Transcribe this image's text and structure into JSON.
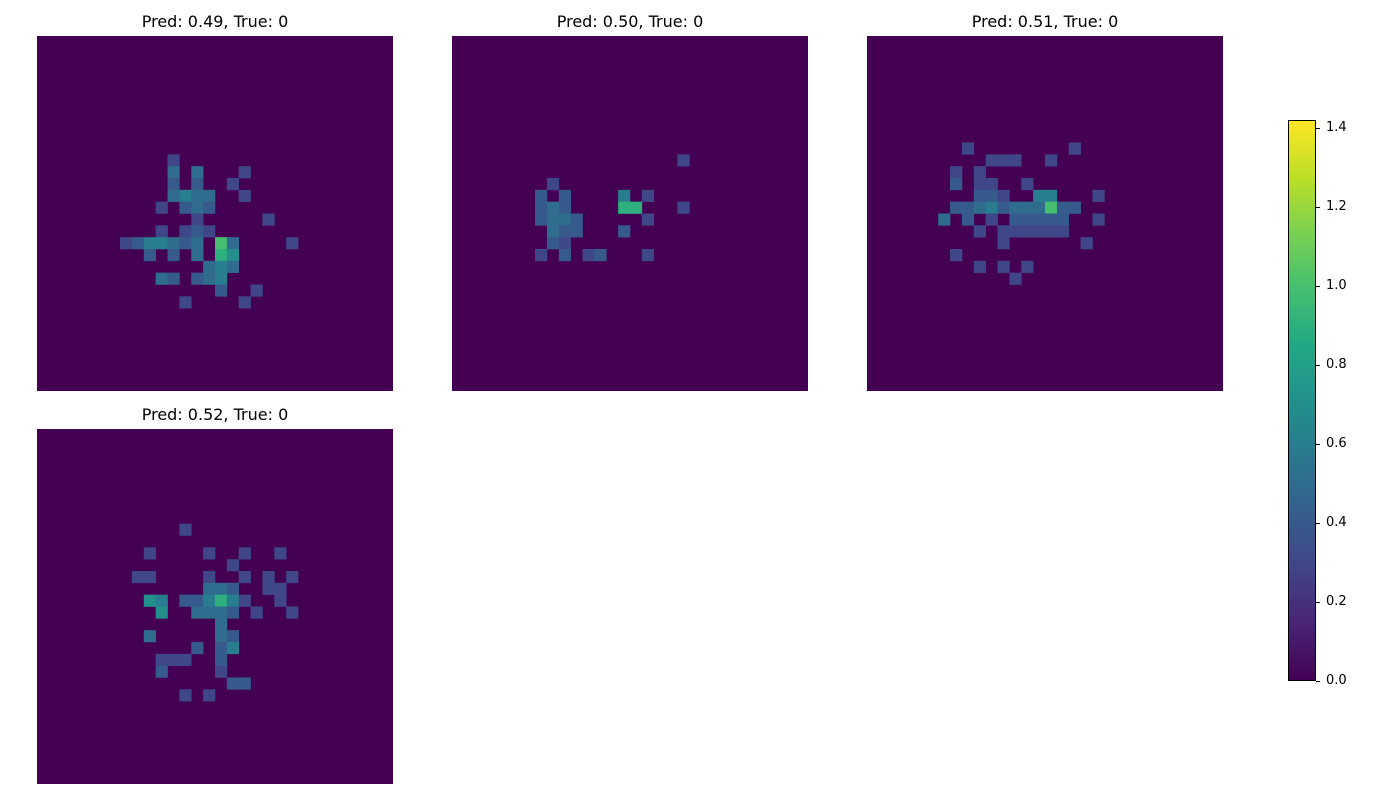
{
  "chart_data": {
    "type": "heatmap",
    "grid_size": 30,
    "background_value": 0.0,
    "colormap": "viridis",
    "panels": [
      {
        "title": "Pred: 0.49, True: 0",
        "cells": [
          [
            11,
            10,
            0.3
          ],
          [
            11,
            11,
            0.5
          ],
          [
            13,
            11,
            0.5
          ],
          [
            17,
            11,
            0.3
          ],
          [
            11,
            12,
            0.4
          ],
          [
            13,
            12,
            0.4
          ],
          [
            16,
            12,
            0.3
          ],
          [
            11,
            13,
            0.5
          ],
          [
            12,
            13,
            0.6
          ],
          [
            13,
            13,
            0.5
          ],
          [
            14,
            13,
            0.5
          ],
          [
            17,
            13,
            0.3
          ],
          [
            10,
            14,
            0.3
          ],
          [
            12,
            14,
            0.4
          ],
          [
            13,
            14,
            0.5
          ],
          [
            14,
            14,
            0.4
          ],
          [
            13,
            15,
            0.3
          ],
          [
            19,
            15,
            0.3
          ],
          [
            10,
            16,
            0.3
          ],
          [
            12,
            16,
            0.3
          ],
          [
            13,
            16,
            0.4
          ],
          [
            14,
            16,
            0.3
          ],
          [
            7,
            17,
            0.3
          ],
          [
            8,
            17,
            0.4
          ],
          [
            9,
            17,
            0.6
          ],
          [
            10,
            17,
            0.6
          ],
          [
            11,
            17,
            0.5
          ],
          [
            12,
            17,
            0.4
          ],
          [
            13,
            17,
            0.5
          ],
          [
            15,
            17,
            1.0
          ],
          [
            16,
            17,
            0.5
          ],
          [
            21,
            17,
            0.3
          ],
          [
            9,
            18,
            0.4
          ],
          [
            11,
            18,
            0.4
          ],
          [
            13,
            18,
            0.5
          ],
          [
            15,
            18,
            0.9
          ],
          [
            16,
            18,
            0.7
          ],
          [
            14,
            19,
            0.5
          ],
          [
            15,
            19,
            0.6
          ],
          [
            16,
            19,
            0.5
          ],
          [
            10,
            20,
            0.5
          ],
          [
            11,
            20,
            0.4
          ],
          [
            13,
            20,
            0.4
          ],
          [
            14,
            20,
            0.5
          ],
          [
            15,
            20,
            0.6
          ],
          [
            15,
            21,
            0.4
          ],
          [
            18,
            21,
            0.3
          ],
          [
            12,
            22,
            0.3
          ],
          [
            17,
            22,
            0.3
          ]
        ]
      },
      {
        "title": "Pred: 0.50, True: 0",
        "cells": [
          [
            19,
            10,
            0.3
          ],
          [
            8,
            12,
            0.3
          ],
          [
            7,
            13,
            0.4
          ],
          [
            9,
            13,
            0.4
          ],
          [
            14,
            13,
            0.6
          ],
          [
            16,
            13,
            0.3
          ],
          [
            7,
            14,
            0.4
          ],
          [
            8,
            14,
            0.5
          ],
          [
            9,
            14,
            0.4
          ],
          [
            14,
            14,
            0.9
          ],
          [
            15,
            14,
            0.9
          ],
          [
            19,
            14,
            0.3
          ],
          [
            7,
            15,
            0.4
          ],
          [
            8,
            15,
            0.5
          ],
          [
            9,
            15,
            0.5
          ],
          [
            10,
            15,
            0.4
          ],
          [
            16,
            15,
            0.3
          ],
          [
            8,
            16,
            0.5
          ],
          [
            9,
            16,
            0.4
          ],
          [
            10,
            16,
            0.4
          ],
          [
            14,
            16,
            0.4
          ],
          [
            8,
            17,
            0.4
          ],
          [
            9,
            17,
            0.3
          ],
          [
            7,
            18,
            0.3
          ],
          [
            9,
            18,
            0.4
          ],
          [
            11,
            18,
            0.3
          ],
          [
            12,
            18,
            0.4
          ],
          [
            16,
            18,
            0.3
          ]
        ]
      },
      {
        "title": "Pred: 0.51, True: 0",
        "cells": [
          [
            8,
            9,
            0.3
          ],
          [
            17,
            9,
            0.3
          ],
          [
            10,
            10,
            0.3
          ],
          [
            11,
            10,
            0.3
          ],
          [
            12,
            10,
            0.3
          ],
          [
            15,
            10,
            0.3
          ],
          [
            7,
            11,
            0.3
          ],
          [
            9,
            11,
            0.3
          ],
          [
            7,
            12,
            0.4
          ],
          [
            9,
            12,
            0.3
          ],
          [
            10,
            12,
            0.3
          ],
          [
            13,
            12,
            0.3
          ],
          [
            9,
            13,
            0.4
          ],
          [
            10,
            13,
            0.4
          ],
          [
            11,
            13,
            0.3
          ],
          [
            14,
            13,
            0.6
          ],
          [
            15,
            13,
            0.6
          ],
          [
            19,
            13,
            0.3
          ],
          [
            7,
            14,
            0.4
          ],
          [
            8,
            14,
            0.4
          ],
          [
            9,
            14,
            0.5
          ],
          [
            10,
            14,
            0.6
          ],
          [
            11,
            14,
            0.4
          ],
          [
            12,
            14,
            0.5
          ],
          [
            13,
            14,
            0.5
          ],
          [
            14,
            14,
            0.5
          ],
          [
            15,
            14,
            1.0
          ],
          [
            16,
            14,
            0.4
          ],
          [
            17,
            14,
            0.4
          ],
          [
            6,
            15,
            0.5
          ],
          [
            8,
            15,
            0.4
          ],
          [
            10,
            15,
            0.3
          ],
          [
            12,
            15,
            0.4
          ],
          [
            13,
            15,
            0.4
          ],
          [
            14,
            15,
            0.4
          ],
          [
            15,
            15,
            0.4
          ],
          [
            16,
            15,
            0.4
          ],
          [
            19,
            15,
            0.3
          ],
          [
            9,
            16,
            0.3
          ],
          [
            11,
            16,
            0.3
          ],
          [
            12,
            16,
            0.3
          ],
          [
            13,
            16,
            0.3
          ],
          [
            14,
            16,
            0.3
          ],
          [
            15,
            16,
            0.3
          ],
          [
            16,
            16,
            0.3
          ],
          [
            11,
            17,
            0.3
          ],
          [
            18,
            17,
            0.3
          ],
          [
            7,
            18,
            0.3
          ],
          [
            9,
            19,
            0.3
          ],
          [
            11,
            19,
            0.3
          ],
          [
            13,
            19,
            0.3
          ],
          [
            12,
            20,
            0.3
          ]
        ]
      },
      {
        "title": "Pred: 0.52, True: 0",
        "cells": [
          [
            12,
            8,
            0.3
          ],
          [
            9,
            10,
            0.3
          ],
          [
            14,
            10,
            0.3
          ],
          [
            17,
            10,
            0.3
          ],
          [
            20,
            10,
            0.3
          ],
          [
            16,
            11,
            0.3
          ],
          [
            8,
            12,
            0.3
          ],
          [
            9,
            12,
            0.3
          ],
          [
            14,
            12,
            0.3
          ],
          [
            17,
            12,
            0.3
          ],
          [
            19,
            12,
            0.3
          ],
          [
            21,
            12,
            0.3
          ],
          [
            14,
            13,
            0.5
          ],
          [
            15,
            13,
            0.5
          ],
          [
            16,
            13,
            0.4
          ],
          [
            19,
            13,
            0.3
          ],
          [
            20,
            13,
            0.3
          ],
          [
            9,
            14,
            0.7
          ],
          [
            10,
            14,
            0.6
          ],
          [
            12,
            14,
            0.4
          ],
          [
            13,
            14,
            0.4
          ],
          [
            14,
            14,
            0.6
          ],
          [
            15,
            14,
            0.9
          ],
          [
            16,
            14,
            0.6
          ],
          [
            17,
            14,
            0.3
          ],
          [
            20,
            14,
            0.3
          ],
          [
            10,
            15,
            0.7
          ],
          [
            13,
            15,
            0.5
          ],
          [
            14,
            15,
            0.5
          ],
          [
            15,
            15,
            0.5
          ],
          [
            16,
            15,
            0.4
          ],
          [
            18,
            15,
            0.3
          ],
          [
            21,
            15,
            0.3
          ],
          [
            15,
            16,
            0.5
          ],
          [
            9,
            17,
            0.5
          ],
          [
            15,
            17,
            0.5
          ],
          [
            16,
            17,
            0.4
          ],
          [
            13,
            18,
            0.4
          ],
          [
            15,
            18,
            0.4
          ],
          [
            16,
            18,
            0.6
          ],
          [
            10,
            19,
            0.3
          ],
          [
            11,
            19,
            0.3
          ],
          [
            12,
            19,
            0.3
          ],
          [
            15,
            19,
            0.4
          ],
          [
            10,
            20,
            0.4
          ],
          [
            15,
            20,
            0.3
          ],
          [
            16,
            21,
            0.4
          ],
          [
            17,
            21,
            0.4
          ],
          [
            12,
            22,
            0.3
          ],
          [
            14,
            22,
            0.3
          ]
        ]
      }
    ],
    "colorbar": {
      "min": 0.0,
      "max": 1.42,
      "ticks": [
        0.0,
        0.2,
        0.4,
        0.6,
        0.8,
        1.0,
        1.2,
        1.4
      ],
      "tick_labels": [
        "0.0",
        "0.2",
        "0.4",
        "0.6",
        "0.8",
        "1.0",
        "1.2",
        "1.4"
      ]
    }
  }
}
